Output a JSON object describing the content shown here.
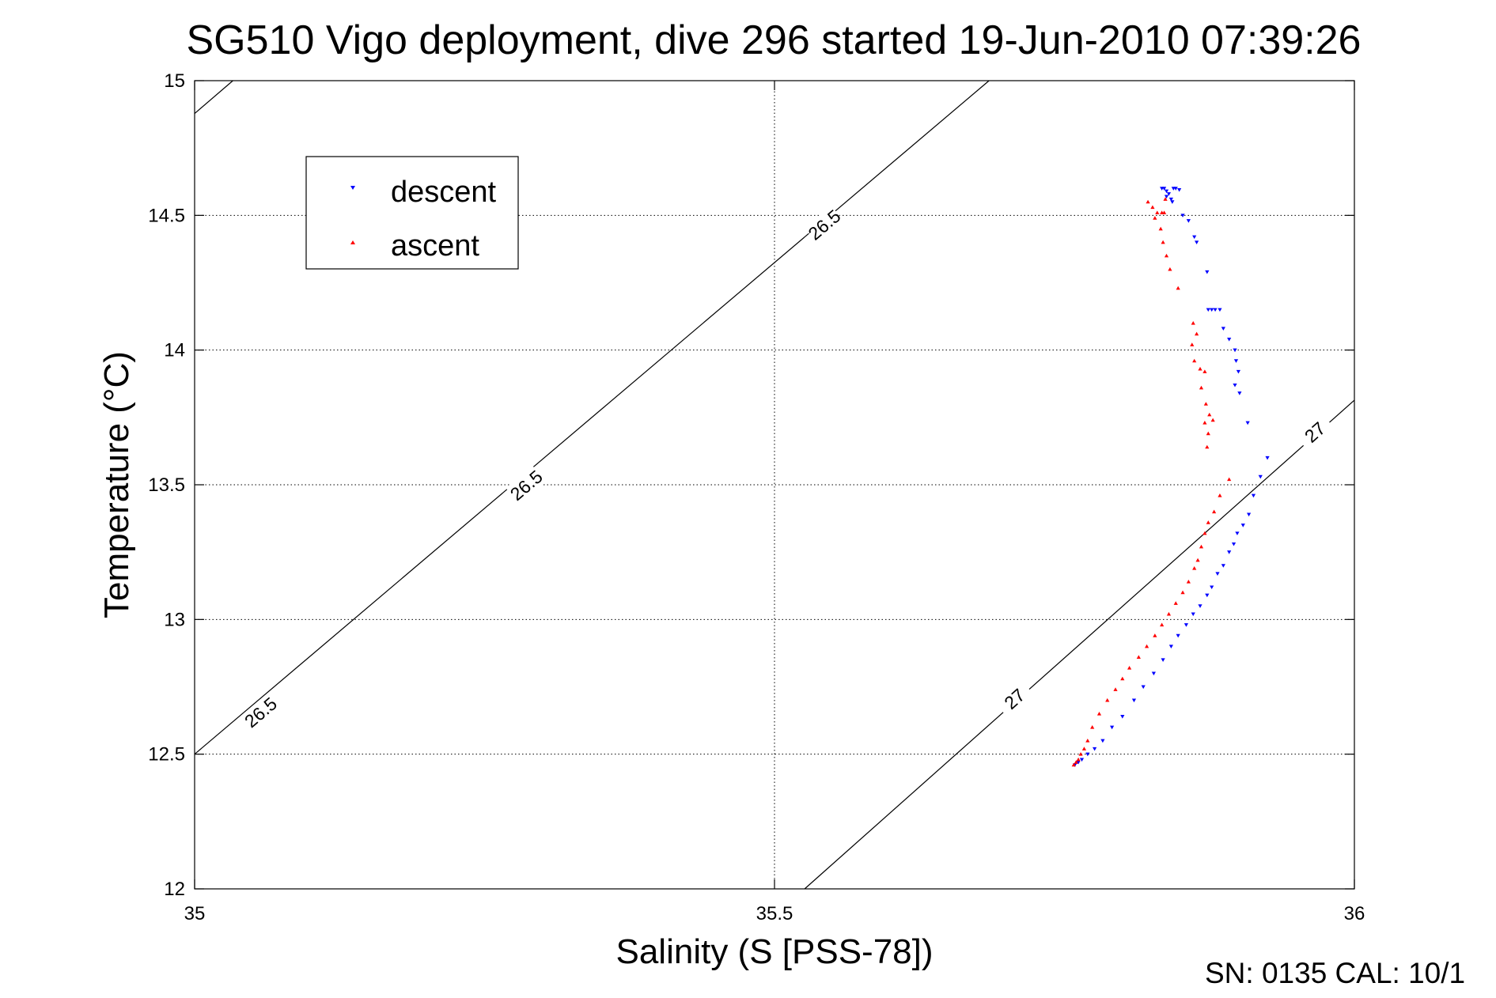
{
  "figure": {
    "title": "SG510 Vigo deployment, dive 296 started 19-Jun-2010 07:39:26",
    "footer": "SN: 0135  CAL: 10/1"
  },
  "chart_data": {
    "type": "scatter",
    "title": "SG510 Vigo deployment, dive 296 started 19-Jun-2010 07:39:26",
    "xlabel": "Salinity (S [PSS-78])",
    "ylabel": "Temperature (°C)",
    "xlim": [
      35,
      36
    ],
    "ylim": [
      12,
      15
    ],
    "xticks": [
      35,
      35.5,
      36
    ],
    "xtick_labels": [
      "35",
      "35.5",
      "36"
    ],
    "yticks": [
      12,
      12.5,
      13,
      13.5,
      14,
      14.5,
      15
    ],
    "ytick_labels": [
      "12",
      "12.5",
      "13",
      "13.5",
      "14",
      "14.5",
      "15"
    ],
    "grid": true,
    "legend": {
      "position": "top-left"
    },
    "colors": {
      "descent": "#0000ff",
      "ascent": "#ff0000",
      "contour": "#000000",
      "grid": "#000000"
    },
    "contours": [
      {
        "level": "26.5",
        "points": [
          [
            35.0,
            12.5
          ],
          [
            35.685,
            15.0
          ]
        ],
        "labels": [
          {
            "x": 35.057,
            "y": 12.655
          },
          {
            "x": 35.286,
            "y": 13.498
          },
          {
            "x": 35.543,
            "y": 14.465
          }
        ]
      },
      {
        "level": "26.5",
        "points": [
          [
            35.0,
            14.878
          ],
          [
            35.033,
            15.0
          ]
        ],
        "labels": []
      },
      {
        "level": "27",
        "points": [
          [
            35.526,
            12.0
          ],
          [
            36.0,
            13.814
          ]
        ],
        "labels": [
          {
            "x": 35.707,
            "y": 12.705
          },
          {
            "x": 35.966,
            "y": 13.695
          }
        ]
      }
    ],
    "series": [
      {
        "name": "descent",
        "marker": "triangle-down",
        "points": [
          [
            35.834,
            14.6
          ],
          [
            35.836,
            14.6
          ],
          [
            35.838,
            14.59
          ],
          [
            35.84,
            14.58
          ],
          [
            35.838,
            14.57
          ],
          [
            35.842,
            14.56
          ],
          [
            35.844,
            14.6
          ],
          [
            35.846,
            14.6
          ],
          [
            35.849,
            14.595
          ],
          [
            35.843,
            14.55
          ],
          [
            35.852,
            14.5
          ],
          [
            35.857,
            14.48
          ],
          [
            35.862,
            14.42
          ],
          [
            35.864,
            14.4
          ],
          [
            35.873,
            14.29
          ],
          [
            35.874,
            14.15
          ],
          [
            35.877,
            14.15
          ],
          [
            35.88,
            14.15
          ],
          [
            35.884,
            14.15
          ],
          [
            35.887,
            14.08
          ],
          [
            35.892,
            14.04
          ],
          [
            35.897,
            14.0
          ],
          [
            35.898,
            13.96
          ],
          [
            35.9,
            13.92
          ],
          [
            35.897,
            13.87
          ],
          [
            35.901,
            13.84
          ],
          [
            35.908,
            13.73
          ],
          [
            35.925,
            13.6
          ],
          [
            35.919,
            13.53
          ],
          [
            35.913,
            13.46
          ],
          [
            35.909,
            13.39
          ],
          [
            35.904,
            13.35
          ],
          [
            35.899,
            13.32
          ],
          [
            35.896,
            13.28
          ],
          [
            35.892,
            13.25
          ],
          [
            35.887,
            13.2
          ],
          [
            35.882,
            13.17
          ],
          [
            35.877,
            13.12
          ],
          [
            35.873,
            13.09
          ],
          [
            35.867,
            13.05
          ],
          [
            35.861,
            13.02
          ],
          [
            35.855,
            12.98
          ],
          [
            35.848,
            12.94
          ],
          [
            35.842,
            12.9
          ],
          [
            35.835,
            12.85
          ],
          [
            35.827,
            12.8
          ],
          [
            35.818,
            12.75
          ],
          [
            35.81,
            12.7
          ],
          [
            35.8,
            12.64
          ],
          [
            35.791,
            12.6
          ],
          [
            35.783,
            12.55
          ],
          [
            35.776,
            12.52
          ],
          [
            35.77,
            12.5
          ],
          [
            35.765,
            12.48
          ],
          [
            35.762,
            12.47
          ],
          [
            35.759,
            12.46
          ]
        ]
      },
      {
        "name": "ascent",
        "marker": "triangle-up",
        "points": [
          [
            35.822,
            14.55
          ],
          [
            35.826,
            14.53
          ],
          [
            35.83,
            14.51
          ],
          [
            35.828,
            14.49
          ],
          [
            35.834,
            14.51
          ],
          [
            35.836,
            14.51
          ],
          [
            35.837,
            14.56
          ],
          [
            35.833,
            14.45
          ],
          [
            35.835,
            14.4
          ],
          [
            35.838,
            14.35
          ],
          [
            35.841,
            14.3
          ],
          [
            35.848,
            14.23
          ],
          [
            35.861,
            14.1
          ],
          [
            35.864,
            14.06
          ],
          [
            35.86,
            14.02
          ],
          [
            35.862,
            13.96
          ],
          [
            35.867,
            13.93
          ],
          [
            35.871,
            13.92
          ],
          [
            35.868,
            13.86
          ],
          [
            35.872,
            13.8
          ],
          [
            35.875,
            13.76
          ],
          [
            35.871,
            13.73
          ],
          [
            35.878,
            13.74
          ],
          [
            35.874,
            13.69
          ],
          [
            35.873,
            13.64
          ],
          [
            35.892,
            13.52
          ],
          [
            35.884,
            13.46
          ],
          [
            35.879,
            13.4
          ],
          [
            35.874,
            13.36
          ],
          [
            35.871,
            13.32
          ],
          [
            35.868,
            13.27
          ],
          [
            35.865,
            13.22
          ],
          [
            35.862,
            13.19
          ],
          [
            35.857,
            13.14
          ],
          [
            35.852,
            13.1
          ],
          [
            35.846,
            13.06
          ],
          [
            35.84,
            13.02
          ],
          [
            35.834,
            12.98
          ],
          [
            35.828,
            12.94
          ],
          [
            35.821,
            12.9
          ],
          [
            35.814,
            12.86
          ],
          [
            35.806,
            12.82
          ],
          [
            35.8,
            12.78
          ],
          [
            35.794,
            12.74
          ],
          [
            35.787,
            12.7
          ],
          [
            35.78,
            12.65
          ],
          [
            35.774,
            12.6
          ],
          [
            35.77,
            12.55
          ],
          [
            35.767,
            12.52
          ],
          [
            35.764,
            12.5
          ],
          [
            35.762,
            12.48
          ],
          [
            35.76,
            12.47
          ],
          [
            35.758,
            12.46
          ]
        ]
      }
    ]
  }
}
